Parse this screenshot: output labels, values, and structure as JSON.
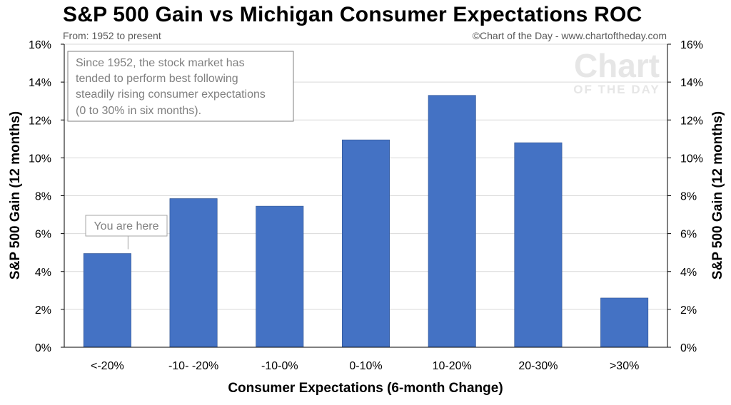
{
  "title": "S&P 500 Gain vs Michigan Consumer Expectations ROC",
  "subtitle": "From: 1952 to present",
  "credit": "©Chart of the Day - www.chartoftheday.com",
  "watermark": {
    "line1": "Chart",
    "line2": "OF THE DAY"
  },
  "annotation_box": {
    "lines": [
      "Since 1952, the stock market has",
      "tended to perform best following",
      "steadily rising consumer expectations",
      "(0 to 30% in six months)."
    ]
  },
  "callout": {
    "text": "You are here",
    "category_index": 0
  },
  "colors": {
    "bar": "#4472c4",
    "grid": "#d9d9d9",
    "annotation_border": "#7f7f7f"
  },
  "chart_data": {
    "type": "bar",
    "categories": [
      "<-20%",
      "-10- -20%",
      "-10-0%",
      "0-10%",
      "10-20%",
      "20-30%",
      ">30%"
    ],
    "values": [
      4.95,
      7.85,
      7.45,
      10.95,
      13.3,
      10.8,
      2.6
    ],
    "xlabel": "Consumer Expectations (6-month Change)",
    "ylabel": "S&P 500 Gain (12 months)",
    "ylabel_right": "S&P 500 Gain (12 months)",
    "ylim": [
      0,
      16
    ],
    "yticks": [
      "0%",
      "2%",
      "4%",
      "6%",
      "8%",
      "10%",
      "12%",
      "14%",
      "16%"
    ],
    "grid": true,
    "legend": "none"
  }
}
